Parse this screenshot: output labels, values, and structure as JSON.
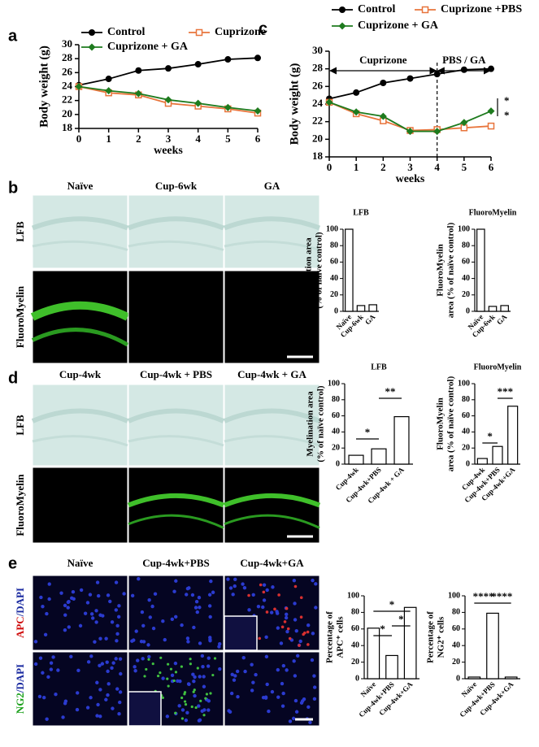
{
  "panel_letters": [
    "a",
    "b",
    "c",
    "d",
    "e"
  ],
  "images": {
    "b": {
      "columns": [
        "Naïve",
        "Cup-6wk",
        "GA"
      ],
      "rows": [
        "LFB",
        "FluoroMyelin"
      ]
    },
    "d": {
      "columns": [
        "Cup-4wk",
        "Cup-4wk + PBS",
        "Cup-4wk + GA"
      ],
      "rows": [
        "LFB",
        "FluoroMyelin"
      ]
    },
    "e": {
      "columns": [
        "Naïve",
        "Cup-4wk+PBS",
        "Cup-4wk+GA"
      ],
      "rows": [
        [
          "APC",
          "/DAPI"
        ],
        [
          "NG2",
          "/DAPI"
        ]
      ]
    }
  },
  "chart_data": [
    {
      "type": "line",
      "ylabel": "Body weight (g)",
      "xlabel": "weeks",
      "x": [
        0,
        1,
        2,
        3,
        4,
        5,
        6
      ],
      "xlim": [
        0,
        6
      ],
      "xticks": [
        0,
        1,
        2,
        3,
        4,
        5,
        6
      ],
      "ylim": [
        18,
        30
      ],
      "yticks": [
        18,
        20,
        22,
        24,
        26,
        28,
        30
      ],
      "series": [
        {
          "name": "Control",
          "color": "#000000",
          "marker": "circle",
          "values": [
            24.2,
            25.1,
            26.3,
            26.6,
            27.2,
            27.9,
            28.1
          ]
        },
        {
          "name": "Cuprizone",
          "color": "#e8743b",
          "marker": "square",
          "values": [
            24.0,
            23.1,
            22.8,
            21.6,
            21.2,
            20.8,
            20.2
          ]
        },
        {
          "name": "Cuprizone + GA",
          "color": "#1e7b1e",
          "marker": "diamond",
          "values": [
            24.0,
            23.4,
            23.0,
            22.1,
            21.6,
            21.0,
            20.5
          ]
        }
      ]
    },
    {
      "type": "line",
      "ylabel": "Body weight (g)",
      "xlabel": "weeks",
      "x": [
        0,
        1,
        2,
        3,
        4,
        5,
        6
      ],
      "xlim": [
        0,
        6
      ],
      "xticks": [
        0,
        1,
        2,
        3,
        4,
        5,
        6
      ],
      "ylim": [
        18,
        30
      ],
      "yticks": [
        18,
        20,
        22,
        24,
        26,
        28,
        30
      ],
      "phases": [
        {
          "label": "Cuprizone",
          "from": 0,
          "to": 4
        },
        {
          "label": "PBS / GA",
          "from": 4,
          "to": 6
        }
      ],
      "significance": [
        "*",
        "*"
      ],
      "series": [
        {
          "name": "Control",
          "color": "#000000",
          "marker": "circle",
          "values": [
            24.6,
            25.3,
            26.4,
            26.9,
            27.4,
            27.9,
            28.0
          ]
        },
        {
          "name": "Cuprizone +PBS",
          "color": "#e8743b",
          "marker": "square",
          "values": [
            24.2,
            22.9,
            22.1,
            21.0,
            21.1,
            21.3,
            21.5
          ]
        },
        {
          "name": "Cuprizone + GA",
          "color": "#1e7b1e",
          "marker": "diamond",
          "values": [
            24.2,
            23.1,
            22.6,
            20.9,
            20.9,
            21.9,
            23.2
          ]
        }
      ]
    },
    {
      "type": "bar",
      "title": "LFB",
      "ylabel": [
        "Myelination area",
        "(% of naïve control)"
      ],
      "categories": [
        "Naïve",
        "Cup-6wk",
        "GA"
      ],
      "values": [
        100,
        7,
        8
      ],
      "ylim": [
        0,
        100
      ],
      "yticks": [
        0,
        20,
        40,
        60,
        80,
        100
      ]
    },
    {
      "type": "bar",
      "title": "FluoroMyelin",
      "ylabel": [
        "FluoroMyelin",
        "area (% of naïve control)"
      ],
      "categories": [
        "Naïve",
        "Cup-6wk",
        "GA"
      ],
      "values": [
        100,
        6,
        7
      ],
      "ylim": [
        0,
        100
      ],
      "yticks": [
        0,
        20,
        40,
        60,
        80,
        100
      ]
    },
    {
      "type": "bar",
      "title": "LFB",
      "ylabel": [
        "Myelination area",
        "(% of naïve control)"
      ],
      "categories": [
        "Cup-4wk",
        "Cup-4wk+PBS",
        "Cup-4wk + GA"
      ],
      "values": [
        11,
        19,
        59
      ],
      "ylim": [
        0,
        100
      ],
      "yticks": [
        0,
        20,
        40,
        60,
        80,
        100
      ],
      "significance": [
        "*",
        "**"
      ]
    },
    {
      "type": "bar",
      "title": "FluoroMyelin",
      "ylabel": [
        "FluoroMyelin",
        "area (% of naïve control)"
      ],
      "categories": [
        "Cup-4wk",
        "Cup-4wk+PBS",
        "Cup-4wk+GA"
      ],
      "values": [
        7,
        22,
        72
      ],
      "ylim": [
        0,
        100
      ],
      "yticks": [
        0,
        20,
        40,
        60,
        80,
        100
      ],
      "significance": [
        "*",
        "***"
      ]
    },
    {
      "type": "bar",
      "ylabel": [
        "Percentage of",
        "APC⁺ cells"
      ],
      "categories": [
        "Naïve",
        "Cup-4wk+PBS",
        "Cup-4wk+GA"
      ],
      "values": [
        61,
        28,
        86
      ],
      "ylim": [
        0,
        100
      ],
      "yticks": [
        0,
        20,
        40,
        60,
        80,
        100
      ],
      "significance": [
        "*",
        "*",
        "*"
      ]
    },
    {
      "type": "bar",
      "ylabel": [
        "Percentage of",
        "NG2⁺ cells"
      ],
      "categories": [
        "Naïve",
        "Cup-4wk+PBS",
        "Cup-4wk+GA"
      ],
      "values": [
        2,
        79,
        2
      ],
      "ylim": [
        0,
        100
      ],
      "yticks": [
        0,
        20,
        40,
        60,
        80,
        100
      ],
      "significance": [
        "****",
        "****"
      ]
    }
  ]
}
